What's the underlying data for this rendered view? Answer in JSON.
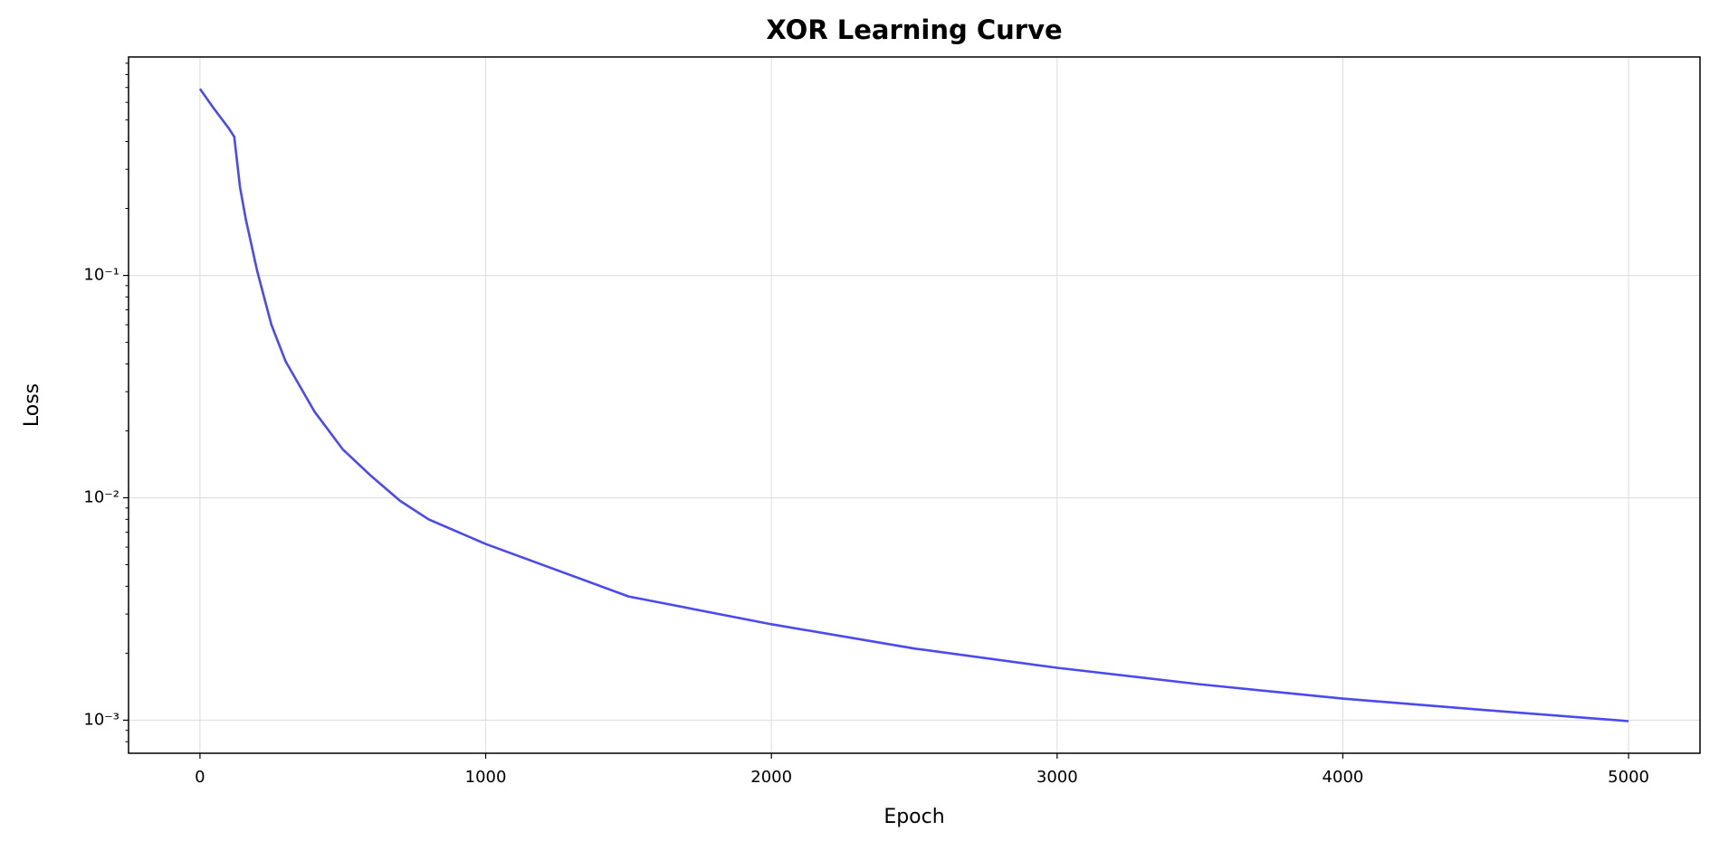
{
  "chart_data": {
    "type": "line",
    "title": "XOR Learning Curve",
    "x_label": "Epoch",
    "y_label": "Loss",
    "x": [
      0,
      50,
      100,
      120,
      140,
      160,
      200,
      250,
      300,
      400,
      500,
      600,
      700,
      800,
      1000,
      1500,
      2000,
      2500,
      3000,
      3500,
      4000,
      4500,
      5000
    ],
    "series": [
      {
        "color": "#4a4aef",
        "values": [
          0.69,
          0.56,
          0.46,
          0.42,
          0.25,
          0.18,
          0.105,
          0.06,
          0.041,
          0.0245,
          0.0165,
          0.0125,
          0.0097,
          0.008,
          0.0062,
          0.0036,
          0.0027,
          0.0021,
          0.00172,
          0.00145,
          0.00125,
          0.00111,
          0.00099
        ]
      }
    ],
    "xlim": [
      -250,
      5250
    ],
    "xticks": [
      0,
      1000,
      2000,
      3000,
      4000,
      5000
    ],
    "ylim": [
      0.00071,
      0.96
    ],
    "y_scale": "log",
    "yticks": [
      {
        "value": 0.001,
        "label": "10⁻³"
      },
      {
        "value": 0.01,
        "label": "10⁻²"
      },
      {
        "value": 0.1,
        "label": "10⁻¹"
      }
    ],
    "yticks_minor": [
      0.0008,
      0.0009,
      0.002,
      0.003,
      0.004,
      0.005,
      0.006,
      0.007,
      0.008,
      0.009,
      0.02,
      0.03,
      0.04,
      0.05,
      0.06,
      0.07,
      0.08,
      0.09,
      0.2,
      0.3,
      0.4,
      0.5,
      0.6,
      0.7,
      0.8,
      0.9
    ],
    "grid": true
  }
}
